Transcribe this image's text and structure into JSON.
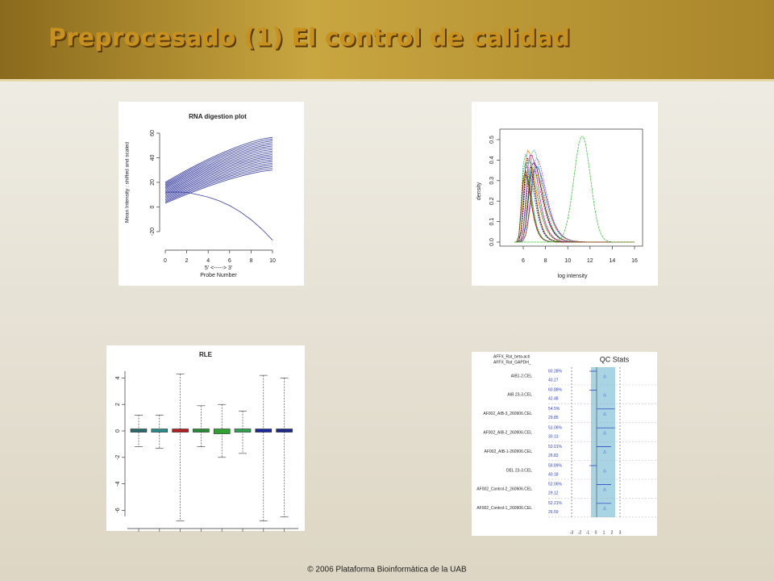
{
  "header": {
    "title": "Preprocesado (1) El control de calidad"
  },
  "digestion": {
    "title": "RNA digestion plot",
    "y_label": "Mean Intensity : shifted and scaled",
    "x_label": "5' <-----> 3'",
    "x_label2": "Probe Number",
    "yticks": [
      "-20",
      "0",
      "20",
      "40",
      "60"
    ],
    "xticks": [
      "0",
      "2",
      "4",
      "6",
      "8",
      "10"
    ]
  },
  "density": {
    "y_label": "density",
    "x_label": "log intensity",
    "yticks": [
      "0.0",
      "0.1",
      "0.2",
      "0.3",
      "0.4",
      "0.5"
    ],
    "xticks": [
      "6",
      "8",
      "10",
      "12",
      "14",
      "16"
    ]
  },
  "rle": {
    "title": "RLE",
    "yticks": [
      "4",
      "2",
      "0",
      "-2",
      "-4",
      "-6"
    ]
  },
  "qc": {
    "title": "QC Stats",
    "legend": [
      "AFFX_Rat_beta-acti",
      "AFFX_Rat_GAPDH_"
    ],
    "rows": [
      {
        "name": "AIB1-2.CEL",
        "pct": "60.28%",
        "val": "40.27"
      },
      {
        "name": "AIB 23-3.CEL",
        "pct": "60.88%",
        "val": "42.48"
      },
      {
        "name": "AF002_AIB-3_260906.CEL",
        "pct": "54.5%",
        "val": "29.85"
      },
      {
        "name": "AF002_AIB-2_260906.CEL",
        "pct": "51.06%",
        "val": "30.13"
      },
      {
        "name": "AF002_AIB-1-260906.CEL",
        "pct": "53.01%",
        "val": "26.83"
      },
      {
        "name": "DEL 23-3.CEL",
        "pct": "59.89%",
        "val": "40.18"
      },
      {
        "name": "AF002_Control-2_260906.CEL",
        "pct": "52.06%",
        "val": "29.12"
      },
      {
        "name": "AF002_Control-1_260906.CEL",
        "pct": "52.21%",
        "val": "26.59"
      }
    ],
    "xticks": [
      "-3",
      "-2",
      "-1",
      "0",
      "1",
      "2",
      "3"
    ]
  },
  "footer": "© 2006 Plataforma Bioinformàtica de la UAB"
}
